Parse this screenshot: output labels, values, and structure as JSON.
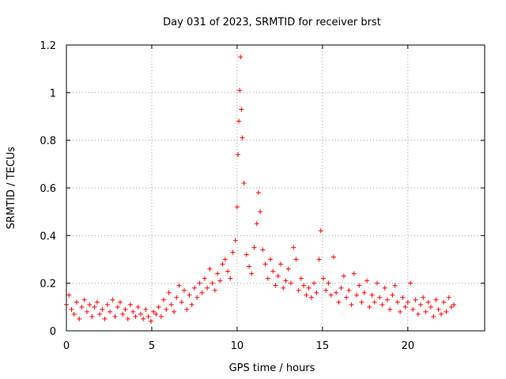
{
  "chart_data": {
    "type": "scatter",
    "title": "Day 031 of 2023, SRMTID for receiver brst",
    "xlabel": "GPS time / hours",
    "ylabel": "SRMTID / TECUs",
    "xlim": [
      0,
      24.5
    ],
    "ylim": [
      0,
      1.2
    ],
    "xticks": [
      0,
      5,
      10,
      15,
      20
    ],
    "yticks": [
      0,
      0.2,
      0.4,
      0.6,
      0.8,
      1,
      1.2
    ],
    "ytick_labels": [
      "0",
      "0.2",
      "0.4",
      "0.6",
      "0.8",
      "1",
      "1.2"
    ],
    "grid": true,
    "marker": "+",
    "color": "#ff0000",
    "series": [
      {
        "name": "brst",
        "x": [
          0.0,
          0.15,
          0.3,
          0.45,
          0.6,
          0.75,
          0.9,
          1.05,
          1.2,
          1.35,
          1.5,
          1.65,
          1.8,
          1.95,
          2.1,
          2.25,
          2.4,
          2.55,
          2.7,
          2.85,
          3.0,
          3.15,
          3.3,
          3.45,
          3.6,
          3.75,
          3.9,
          4.05,
          4.2,
          4.35,
          4.5,
          4.65,
          4.8,
          4.95,
          5.1,
          5.25,
          5.4,
          5.55,
          5.7,
          5.85,
          6.0,
          6.15,
          6.3,
          6.45,
          6.6,
          6.75,
          6.9,
          7.05,
          7.2,
          7.35,
          7.5,
          7.65,
          7.8,
          7.95,
          8.1,
          8.25,
          8.4,
          8.55,
          8.7,
          8.85,
          9.0,
          9.15,
          9.3,
          9.45,
          9.6,
          9.75,
          9.9,
          10.0,
          10.05,
          10.1,
          10.15,
          10.2,
          10.25,
          10.3,
          10.4,
          10.55,
          10.7,
          10.85,
          11.0,
          11.15,
          11.25,
          11.35,
          11.5,
          11.65,
          11.8,
          11.95,
          12.1,
          12.25,
          12.4,
          12.55,
          12.7,
          12.85,
          13.0,
          13.15,
          13.3,
          13.45,
          13.6,
          13.75,
          13.9,
          14.05,
          14.2,
          14.35,
          14.5,
          14.65,
          14.8,
          14.9,
          15.05,
          15.2,
          15.35,
          15.5,
          15.65,
          15.8,
          15.95,
          16.1,
          16.25,
          16.4,
          16.55,
          16.7,
          16.85,
          17.0,
          17.15,
          17.3,
          17.45,
          17.6,
          17.75,
          17.9,
          18.05,
          18.2,
          18.35,
          18.5,
          18.65,
          18.8,
          18.95,
          19.1,
          19.25,
          19.4,
          19.55,
          19.7,
          19.85,
          20.0,
          20.15,
          20.3,
          20.45,
          20.6,
          20.75,
          20.9,
          21.05,
          21.2,
          21.35,
          21.5,
          21.65,
          21.8,
          21.95,
          22.1,
          22.25,
          22.4,
          22.55,
          22.7
        ],
        "y": [
          0.11,
          0.15,
          0.09,
          0.07,
          0.12,
          0.05,
          0.1,
          0.13,
          0.08,
          0.11,
          0.06,
          0.1,
          0.12,
          0.07,
          0.09,
          0.05,
          0.11,
          0.08,
          0.13,
          0.06,
          0.1,
          0.12,
          0.07,
          0.09,
          0.05,
          0.11,
          0.08,
          0.06,
          0.1,
          0.07,
          0.05,
          0.09,
          0.06,
          0.04,
          0.08,
          0.07,
          0.1,
          0.06,
          0.13,
          0.09,
          0.16,
          0.11,
          0.08,
          0.14,
          0.19,
          0.12,
          0.17,
          0.09,
          0.15,
          0.11,
          0.18,
          0.14,
          0.2,
          0.16,
          0.22,
          0.18,
          0.26,
          0.2,
          0.17,
          0.24,
          0.21,
          0.28,
          0.3,
          0.25,
          0.22,
          0.33,
          0.38,
          0.52,
          0.74,
          0.88,
          1.01,
          1.15,
          0.93,
          0.81,
          0.62,
          0.32,
          0.27,
          0.24,
          0.35,
          0.45,
          0.58,
          0.5,
          0.34,
          0.28,
          0.22,
          0.3,
          0.25,
          0.19,
          0.23,
          0.28,
          0.18,
          0.21,
          0.26,
          0.2,
          0.35,
          0.3,
          0.17,
          0.22,
          0.19,
          0.15,
          0.18,
          0.14,
          0.2,
          0.16,
          0.3,
          0.42,
          0.22,
          0.17,
          0.2,
          0.15,
          0.31,
          0.16,
          0.12,
          0.18,
          0.23,
          0.14,
          0.17,
          0.11,
          0.24,
          0.15,
          0.19,
          0.12,
          0.16,
          0.21,
          0.1,
          0.15,
          0.12,
          0.2,
          0.14,
          0.11,
          0.18,
          0.13,
          0.09,
          0.15,
          0.19,
          0.12,
          0.08,
          0.14,
          0.1,
          0.12,
          0.2,
          0.09,
          0.13,
          0.07,
          0.11,
          0.14,
          0.08,
          0.12,
          0.1,
          0.06,
          0.13,
          0.09,
          0.07,
          0.12,
          0.08,
          0.14,
          0.1,
          0.11
        ]
      }
    ]
  }
}
